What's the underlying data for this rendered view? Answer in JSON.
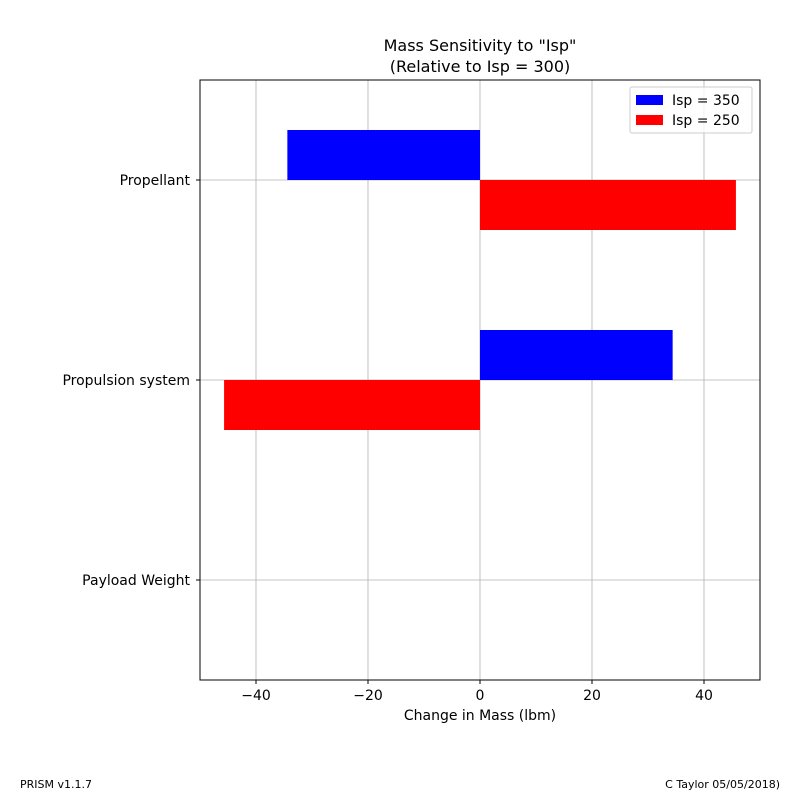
{
  "chart_data": {
    "type": "bar",
    "orientation": "horizontal",
    "title": "Mass Sensitivity to \"Isp\"",
    "subtitle": "(Relative to Isp = 300)",
    "xlabel": "Change in Mass (lbm)",
    "ylabel": "",
    "xlim": [
      -50,
      50
    ],
    "xticks": [
      -40,
      -20,
      0,
      20,
      40
    ],
    "xtick_labels": [
      "−40",
      "−20",
      "0",
      "20",
      "40"
    ],
    "categories": [
      "Propellant",
      "Propulsion system",
      "Payload Weight"
    ],
    "series": [
      {
        "name": "Isp = 350",
        "color": "#0000ff",
        "values": [
          -34.4,
          34.4,
          0
        ]
      },
      {
        "name": "Isp = 250",
        "color": "#ff0000",
        "values": [
          45.7,
          -45.7,
          0
        ]
      }
    ],
    "grid": true,
    "legend_position": "top-right"
  },
  "footer": {
    "left": "PRISM v1.1.7",
    "right": "C Taylor 05/05/2018)"
  }
}
